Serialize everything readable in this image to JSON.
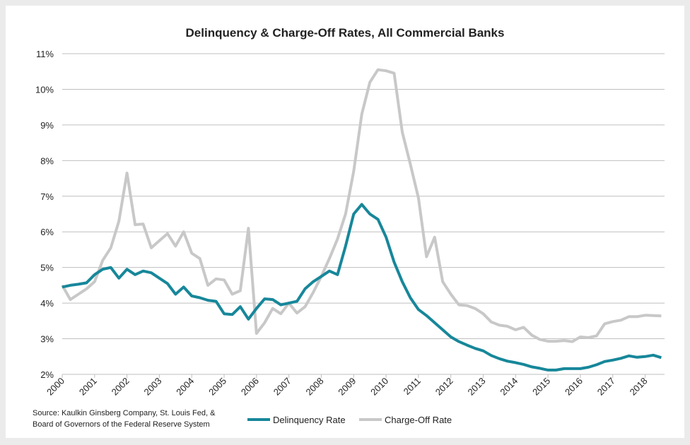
{
  "chart_data": {
    "type": "line",
    "title": "Delinquency & Charge-Off Rates, All Commercial Banks",
    "source": [
      "Source: Kaulkin Ginsberg Company, St. Louis Fed, &",
      "Board of Governors of the Federal Reserve System"
    ],
    "x": [
      2000,
      2000.25,
      2000.5,
      2000.75,
      2001,
      2001.25,
      2001.5,
      2001.75,
      2002,
      2002.25,
      2002.5,
      2002.75,
      2003,
      2003.25,
      2003.5,
      2003.75,
      2004,
      2004.25,
      2004.5,
      2004.75,
      2005,
      2005.25,
      2005.5,
      2005.75,
      2006,
      2006.25,
      2006.5,
      2006.75,
      2007,
      2007.25,
      2007.5,
      2007.75,
      2008,
      2008.25,
      2008.5,
      2008.75,
      2009,
      2009.25,
      2009.5,
      2009.75,
      2010,
      2010.25,
      2010.5,
      2010.75,
      2011,
      2011.25,
      2011.5,
      2011.75,
      2012,
      2012.25,
      2012.5,
      2012.75,
      2013,
      2013.25,
      2013.5,
      2013.75,
      2014,
      2014.25,
      2014.5,
      2014.75,
      2015,
      2015.25,
      2015.5,
      2015.75,
      2016,
      2016.25,
      2016.5,
      2016.75,
      2017,
      2017.25,
      2017.5,
      2017.75,
      2018,
      2018.25,
      2018.5
    ],
    "series": [
      {
        "name": "Delinquency Rate",
        "color": "#17879a",
        "values": [
          4.45,
          4.5,
          4.53,
          4.57,
          4.8,
          4.95,
          5.0,
          4.7,
          4.95,
          4.8,
          4.9,
          4.85,
          4.7,
          4.55,
          4.25,
          4.45,
          4.2,
          4.15,
          4.08,
          4.05,
          3.7,
          3.68,
          3.9,
          3.55,
          3.85,
          4.12,
          4.1,
          3.95,
          4.0,
          4.05,
          4.4,
          4.6,
          4.75,
          4.9,
          4.8,
          5.6,
          6.5,
          6.77,
          6.5,
          6.35,
          5.85,
          5.15,
          4.6,
          4.15,
          3.82,
          3.65,
          3.45,
          3.25,
          3.05,
          2.92,
          2.82,
          2.73,
          2.66,
          2.53,
          2.44,
          2.37,
          2.33,
          2.28,
          2.21,
          2.17,
          2.12,
          2.12,
          2.16,
          2.16,
          2.16,
          2.2,
          2.27,
          2.36,
          2.4,
          2.45,
          2.52,
          2.48,
          2.5,
          2.54,
          2.47
        ]
      },
      {
        "name": "Charge-Off Rate",
        "color": "#c8c8c8",
        "values": [
          4.5,
          4.1,
          4.25,
          4.4,
          4.6,
          5.2,
          5.55,
          6.3,
          7.65,
          6.2,
          6.22,
          5.55,
          5.75,
          5.95,
          5.6,
          6.0,
          5.4,
          5.25,
          4.5,
          4.68,
          4.65,
          4.25,
          4.35,
          6.1,
          3.15,
          3.45,
          3.85,
          3.7,
          4.0,
          3.72,
          3.9,
          4.3,
          4.75,
          5.25,
          5.8,
          6.5,
          7.7,
          9.3,
          10.2,
          10.55,
          10.52,
          10.45,
          8.8,
          7.9,
          6.95,
          5.3,
          5.85,
          4.6,
          4.25,
          3.95,
          3.93,
          3.85,
          3.7,
          3.47,
          3.38,
          3.35,
          3.25,
          3.32,
          3.1,
          2.98,
          2.93,
          2.93,
          2.95,
          2.92,
          3.05,
          3.03,
          3.08,
          3.42,
          3.48,
          3.52,
          3.62,
          3.62,
          3.66,
          3.65,
          3.64
        ]
      }
    ],
    "xlim": [
      2000,
      2018.6
    ],
    "xticks": [
      2000,
      2001,
      2002,
      2003,
      2004,
      2005,
      2006,
      2007,
      2008,
      2009,
      2010,
      2011,
      2012,
      2013,
      2014,
      2015,
      2016,
      2017,
      2018
    ],
    "ylim": [
      2,
      11
    ],
    "yticks": [
      {
        "value": 2,
        "label": "2%"
      },
      {
        "value": 3,
        "label": "3%"
      },
      {
        "value": 4,
        "label": "4%"
      },
      {
        "value": 5,
        "label": "5%"
      },
      {
        "value": 6,
        "label": "6%"
      },
      {
        "value": 7,
        "label": "7%"
      },
      {
        "value": 8,
        "label": "8%"
      },
      {
        "value": 9,
        "label": "9%"
      },
      {
        "value": 10,
        "label": "10%"
      },
      {
        "value": 11,
        "label": "11%"
      }
    ],
    "grid": true
  }
}
